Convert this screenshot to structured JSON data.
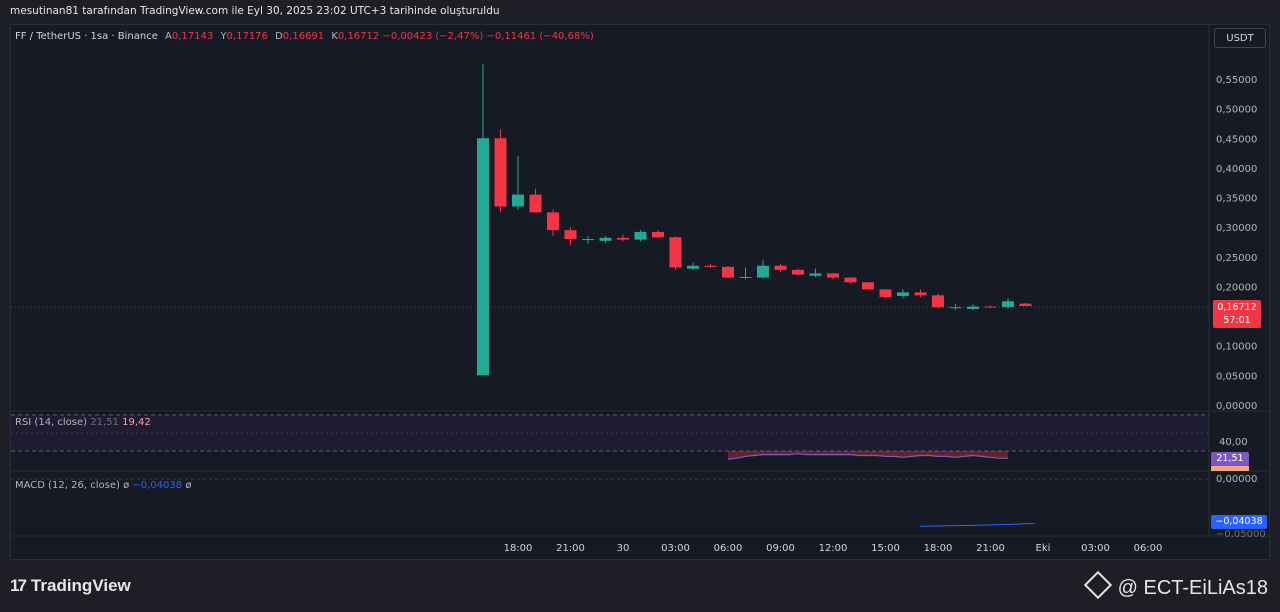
{
  "header": {
    "title": "mesutinan81 tarafından TradingView.com ile Eyl 30, 2025 23:02 UTC+3 tarihinde oluşturuldu"
  },
  "legend": {
    "symbol": "FF / TetherUS · 1sa · Binance",
    "open_label": "A",
    "open": "0,17143",
    "high_label": "Y",
    "high": "0,17176",
    "low_label": "D",
    "low": "0,16691",
    "close_label": "K",
    "close": "0,16712",
    "change": "−0,00423 (−2,47%)",
    "change2": "−0,11461 (−40,68%)"
  },
  "currency_button": "USDT",
  "price_tag": {
    "price": "0,16712",
    "countdown": "57:01"
  },
  "rsi": {
    "label": "RSI (14, close)",
    "value1": "21,51",
    "value2": "19,42",
    "tag_value": "21,51",
    "level_label": "40,00"
  },
  "macd": {
    "label": "MACD (12, 26, close)",
    "sym": "ø",
    "value": "−0,04038",
    "sym2": "ø",
    "tag_value": "−0,04038",
    "zero_label": "0,00000",
    "cut_label": "−0,05000"
  },
  "footer": {
    "brand": "TradingView",
    "watermark": "@ ECT-EiLiAs18"
  },
  "colors": {
    "up": "#22ab94",
    "down": "#f23645",
    "rsi_line": "#7e57c2",
    "macd_line": "#2962ff",
    "background": "#161a25"
  },
  "chart_data": {
    "type": "candlestick",
    "y_axis_ticks": [
      "0,55000",
      "0,50000",
      "0,45000",
      "0,40000",
      "0,35000",
      "0,30000",
      "0,25000",
      "0,20000",
      "0,15000",
      "0,10000",
      "0,05000",
      "0,00000"
    ],
    "y_axis_values": [
      0.55,
      0.5,
      0.45,
      0.4,
      0.35,
      0.3,
      0.25,
      0.2,
      0.15,
      0.1,
      0.05,
      0.0
    ],
    "ylim": [
      0.0,
      0.58
    ],
    "x_axis_labels": [
      "18:00",
      "21:00",
      "30",
      "03:00",
      "06:00",
      "09:00",
      "12:00",
      "15:00",
      "18:00",
      "21:00",
      "Eki",
      "03:00",
      "06:00"
    ],
    "x_axis_label_hours": [
      0,
      3,
      6,
      9,
      12,
      15,
      18,
      21,
      24,
      27,
      30,
      33,
      36
    ],
    "candles": [
      {
        "o": 0.05,
        "h": 0.575,
        "l": 0.05,
        "c": 0.45
      },
      {
        "o": 0.45,
        "h": 0.465,
        "l": 0.325,
        "c": 0.335
      },
      {
        "o": 0.335,
        "h": 0.42,
        "l": 0.33,
        "c": 0.355
      },
      {
        "o": 0.355,
        "h": 0.365,
        "l": 0.325,
        "c": 0.325
      },
      {
        "o": 0.325,
        "h": 0.33,
        "l": 0.285,
        "c": 0.295
      },
      {
        "o": 0.295,
        "h": 0.3,
        "l": 0.27,
        "c": 0.28
      },
      {
        "o": 0.28,
        "h": 0.285,
        "l": 0.272,
        "c": 0.28
      },
      {
        "o": 0.277,
        "h": 0.285,
        "l": 0.273,
        "c": 0.282
      },
      {
        "o": 0.282,
        "h": 0.287,
        "l": 0.276,
        "c": 0.279
      },
      {
        "o": 0.279,
        "h": 0.295,
        "l": 0.276,
        "c": 0.292
      },
      {
        "o": 0.292,
        "h": 0.295,
        "l": 0.281,
        "c": 0.283
      },
      {
        "o": 0.283,
        "h": 0.285,
        "l": 0.228,
        "c": 0.232
      },
      {
        "o": 0.23,
        "h": 0.24,
        "l": 0.228,
        "c": 0.235
      },
      {
        "o": 0.235,
        "h": 0.238,
        "l": 0.232,
        "c": 0.233
      },
      {
        "o": 0.233,
        "h": 0.235,
        "l": 0.213,
        "c": 0.215
      },
      {
        "o": 0.215,
        "h": 0.232,
        "l": 0.212,
        "c": 0.216
      },
      {
        "o": 0.215,
        "h": 0.245,
        "l": 0.213,
        "c": 0.235
      },
      {
        "o": 0.235,
        "h": 0.238,
        "l": 0.225,
        "c": 0.228
      },
      {
        "o": 0.228,
        "h": 0.23,
        "l": 0.218,
        "c": 0.22
      },
      {
        "o": 0.218,
        "h": 0.23,
        "l": 0.216,
        "c": 0.222
      },
      {
        "o": 0.222,
        "h": 0.223,
        "l": 0.212,
        "c": 0.215
      },
      {
        "o": 0.215,
        "h": 0.216,
        "l": 0.205,
        "c": 0.207
      },
      {
        "o": 0.207,
        "h": 0.207,
        "l": 0.195,
        "c": 0.195
      },
      {
        "o": 0.195,
        "h": 0.196,
        "l": 0.18,
        "c": 0.182
      },
      {
        "o": 0.184,
        "h": 0.195,
        "l": 0.18,
        "c": 0.19
      },
      {
        "o": 0.19,
        "h": 0.195,
        "l": 0.182,
        "c": 0.185
      },
      {
        "o": 0.185,
        "h": 0.188,
        "l": 0.163,
        "c": 0.165
      },
      {
        "o": 0.165,
        "h": 0.17,
        "l": 0.16,
        "c": 0.165
      },
      {
        "o": 0.162,
        "h": 0.17,
        "l": 0.16,
        "c": 0.166
      },
      {
        "o": 0.166,
        "h": 0.168,
        "l": 0.164,
        "c": 0.165
      },
      {
        "o": 0.165,
        "h": 0.18,
        "l": 0.163,
        "c": 0.175
      },
      {
        "o": 0.171,
        "h": 0.172,
        "l": 0.167,
        "c": 0.167
      }
    ],
    "rsi_series": [
      21,
      22,
      24,
      25,
      26,
      26,
      26,
      26,
      27,
      26,
      26,
      26,
      26,
      26,
      26,
      25,
      25,
      25,
      24,
      24,
      23,
      24,
      25,
      25,
      24,
      24,
      23,
      24,
      25,
      24,
      23,
      22,
      22
    ],
    "rsi_ylim": [
      0,
      100
    ],
    "macd_series": [
      -0.043,
      -0.0428,
      -0.0427,
      -0.0425,
      -0.0424,
      -0.0423,
      -0.0421,
      -0.0419,
      -0.0417,
      -0.0415,
      -0.0413,
      -0.041,
      -0.0406,
      -0.0404
    ],
    "macd_ylim": [
      -0.0518,
      0.0
    ]
  }
}
